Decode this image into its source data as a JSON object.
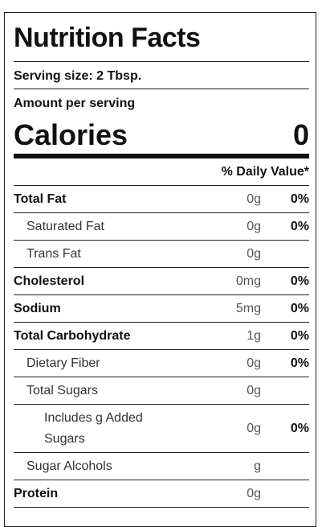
{
  "label": {
    "title": "Nutrition Facts",
    "serving_size": "Serving size: 2 Tbsp.",
    "amount_per_serving": "Amount per serving",
    "calories_label": "Calories",
    "calories_value": "0",
    "daily_value_header": "% Daily Value*"
  },
  "rows": [
    {
      "name": "Total Fat",
      "amount": "0g",
      "dv": "0%"
    },
    {
      "name": "Saturated Fat",
      "amount": "0g",
      "dv": "0%"
    },
    {
      "name": "Trans Fat",
      "amount": "0g",
      "dv": ""
    },
    {
      "name": "Cholesterol",
      "amount": "0mg",
      "dv": "0%"
    },
    {
      "name": "Sodium",
      "amount": "5mg",
      "dv": "0%"
    },
    {
      "name": "Total Carbohydrate",
      "amount": "1g",
      "dv": "0%"
    },
    {
      "name": "Dietary Fiber",
      "amount": "0g",
      "dv": "0%"
    },
    {
      "name": "Total Sugars",
      "amount": "0g",
      "dv": ""
    },
    {
      "name": "Includes g Added Sugars",
      "amount": "0g",
      "dv": "0%"
    },
    {
      "name": "Sugar Alcohols",
      "amount": "g",
      "dv": ""
    },
    {
      "name": "Protein",
      "amount": "0g",
      "dv": ""
    }
  ]
}
